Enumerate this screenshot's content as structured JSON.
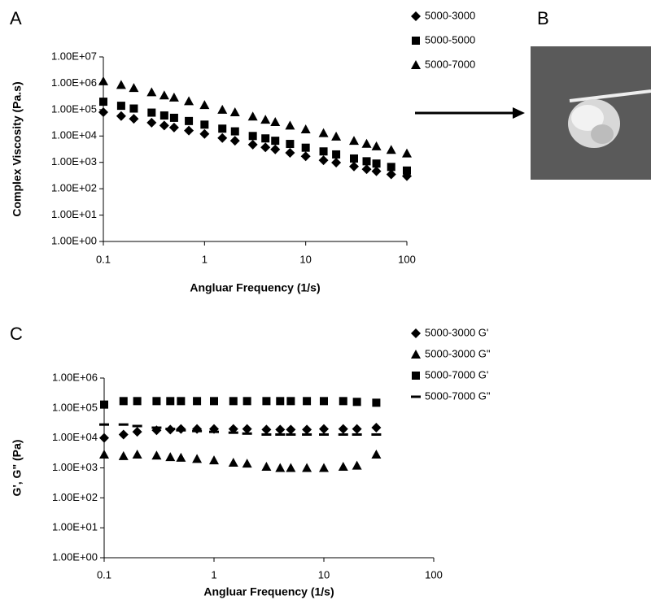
{
  "chart_data": [
    {
      "type": "scatter",
      "label": "A",
      "xlabel": "Angluar Frequency (1/s)",
      "ylabel": "Complex Viscosity (Pa.s)",
      "log_x": true,
      "log_y": true,
      "xlim": [
        0.1,
        100
      ],
      "ylim": [
        1,
        10000000
      ],
      "xticks": [
        0.1,
        1,
        10,
        100
      ],
      "yticks": [
        {
          "value": 1,
          "label": "1.00E+00"
        },
        {
          "value": 10,
          "label": "1.00E+01"
        },
        {
          "value": 100,
          "label": "1.00E+02"
        },
        {
          "value": 1000,
          "label": "1.00E+03"
        },
        {
          "value": 10000,
          "label": "1.00E+04"
        },
        {
          "value": 100000,
          "label": "1.00E+05"
        },
        {
          "value": 1000000,
          "label": "1.00E+06"
        },
        {
          "value": 10000000,
          "label": "1.00E+07"
        }
      ],
      "x": [
        0.1,
        0.15,
        0.2,
        0.3,
        0.4,
        0.5,
        0.7,
        1,
        1.5,
        2,
        3,
        4,
        5,
        7,
        10,
        15,
        20,
        30,
        40,
        50,
        70,
        100
      ],
      "series": [
        {
          "name": "5000-3000",
          "marker": "diamond",
          "color": "#000000",
          "values": [
            80000,
            57000,
            45000,
            32000,
            25000,
            21000,
            16000,
            12000,
            8400,
            6600,
            4700,
            3700,
            3100,
            2300,
            1700,
            1200,
            980,
            700,
            550,
            460,
            350,
            300
          ]
        },
        {
          "name": "5000-5000",
          "marker": "square",
          "color": "#000000",
          "values": [
            200000,
            140000,
            110000,
            77000,
            60000,
            49000,
            37000,
            27000,
            19000,
            15000,
            10000,
            8100,
            6600,
            5000,
            3600,
            2600,
            2000,
            1400,
            1100,
            900,
            670,
            490
          ]
        },
        {
          "name": "5000-7000",
          "marker": "triangle",
          "color": "#000000",
          "values": [
            1200000,
            870000,
            670000,
            460000,
            350000,
            290000,
            210000,
            150000,
            100000,
            80000,
            55000,
            42000,
            34000,
            25000,
            18000,
            13000,
            9600,
            6600,
            5100,
            4100,
            3000,
            2200
          ]
        }
      ]
    },
    {
      "type": "scatter",
      "label": "C",
      "xlabel": "Angluar Frequency (1/s)",
      "ylabel": "G', G\" (Pa)",
      "log_x": true,
      "log_y": true,
      "xlim": [
        0.1,
        100
      ],
      "ylim": [
        1,
        1000000
      ],
      "xticks": [
        0.1,
        1,
        10,
        100
      ],
      "yticks": [
        {
          "value": 1,
          "label": "1.00E+00"
        },
        {
          "value": 10,
          "label": "1.00E+01"
        },
        {
          "value": 100,
          "label": "1.00E+02"
        },
        {
          "value": 1000,
          "label": "1.00E+03"
        },
        {
          "value": 10000,
          "label": "1.00E+04"
        },
        {
          "value": 100000,
          "label": "1.00E+05"
        },
        {
          "value": 1000000,
          "label": "1.00E+06"
        }
      ],
      "x": [
        0.1,
        0.15,
        0.2,
        0.3,
        0.4,
        0.5,
        0.7,
        1,
        1.5,
        2,
        3,
        4,
        5,
        7,
        10,
        15,
        20,
        30
      ],
      "series": [
        {
          "name": "5000-3000 G'",
          "marker": "diamond",
          "color": "#000000",
          "values": [
            10000,
            13000,
            16000,
            18000,
            19000,
            20000,
            20000,
            20000,
            20000,
            20000,
            19000,
            19000,
            19000,
            19000,
            20000,
            20000,
            20000,
            22000
          ]
        },
        {
          "name": "5000-3000 G\"",
          "marker": "triangle",
          "color": "#000000",
          "values": [
            2800,
            2500,
            2800,
            2600,
            2300,
            2200,
            2000,
            1800,
            1500,
            1400,
            1100,
            1000,
            1000,
            1000,
            1000,
            1100,
            1200,
            2800
          ]
        },
        {
          "name": "5000-7000 G'",
          "marker": "square",
          "color": "#000000",
          "values": [
            130000,
            170000,
            170000,
            170000,
            170000,
            170000,
            170000,
            170000,
            170000,
            170000,
            170000,
            170000,
            170000,
            170000,
            170000,
            170000,
            160000,
            150000
          ]
        },
        {
          "name": "5000-7000 G\"",
          "marker": "dash",
          "color": "#000000",
          "values": [
            28000,
            28000,
            25000,
            22000,
            20000,
            18000,
            17000,
            16000,
            15000,
            14000,
            13000,
            13000,
            13000,
            13000,
            13000,
            13000,
            13000,
            13000
          ]
        }
      ]
    }
  ],
  "photo": {
    "label": "B"
  }
}
